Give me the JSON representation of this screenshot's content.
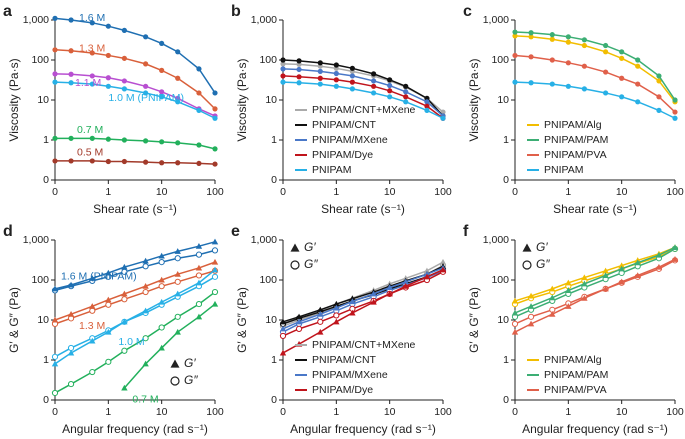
{
  "chart_data": [
    {
      "type": "line",
      "panel_label": "a",
      "xlabel": "Shear rate (s⁻¹)",
      "ylabel": "Viscosity (Pa·s)",
      "log_x": true,
      "log_y": true,
      "xlim": [
        0.1,
        100
      ],
      "ylim": [
        0.1,
        1000
      ],
      "xticks": [
        {
          "value": 0.1,
          "label": "0"
        },
        1,
        10,
        100
      ],
      "yticks": [
        {
          "value": 0.1,
          "label": "0"
        },
        1,
        10,
        100,
        {
          "value": 1000,
          "label": "1,000"
        }
      ],
      "legend": "inline",
      "x": [
        0.1,
        0.2,
        0.5,
        1,
        2,
        5,
        10,
        20,
        50,
        100
      ],
      "series": [
        {
          "name": "1.6 M",
          "color": "#1f6fb2",
          "values": [
            1100,
            1000,
            850,
            700,
            550,
            380,
            260,
            160,
            60,
            15
          ]
        },
        {
          "name": "1.3 M",
          "color": "#d9603b",
          "values": [
            180,
            170,
            150,
            130,
            110,
            80,
            55,
            35,
            15,
            6
          ]
        },
        {
          "name": "1.1 M",
          "color": "#b84fd1",
          "values": [
            45,
            44,
            40,
            36,
            30,
            22,
            16,
            11,
            6,
            4
          ]
        },
        {
          "name": "1.0 M (PNIPAM)",
          "color": "#27b0e6",
          "values": [
            28,
            27,
            25,
            22,
            19,
            15,
            12,
            9,
            5.5,
            3.5
          ]
        },
        {
          "name": "0.7 M",
          "color": "#22b05c",
          "values": [
            1.1,
            1.1,
            1.1,
            1.05,
            1.0,
            0.95,
            0.9,
            0.85,
            0.75,
            0.6
          ]
        },
        {
          "name": "0.5 M",
          "color": "#a23a2a",
          "values": [
            0.3,
            0.3,
            0.3,
            0.29,
            0.29,
            0.28,
            0.27,
            0.27,
            0.26,
            0.25
          ]
        }
      ]
    },
    {
      "type": "line",
      "panel_label": "b",
      "xlabel": "Shear rate (s⁻¹)",
      "ylabel": "Viscosity (Pa·s)",
      "log_x": true,
      "log_y": true,
      "xlim": [
        0.1,
        100
      ],
      "ylim": [
        0.1,
        1000
      ],
      "xticks": [
        {
          "value": 0.1,
          "label": "0"
        },
        1,
        10,
        100
      ],
      "yticks": [
        {
          "value": 0.1,
          "label": "0"
        },
        1,
        10,
        100,
        {
          "value": 1000,
          "label": "1,000"
        }
      ],
      "legend": "lower right",
      "x": [
        0.1,
        0.2,
        0.5,
        1,
        2,
        5,
        10,
        20,
        50,
        100
      ],
      "series": [
        {
          "name": "PNIPAM/CNT+MXene",
          "color": "#aaaaaa",
          "values": [
            80,
            78,
            70,
            62,
            52,
            40,
            30,
            21,
            11,
            5
          ]
        },
        {
          "name": "PNIPAM/CNT",
          "color": "#111111",
          "values": [
            100,
            95,
            85,
            75,
            62,
            45,
            32,
            22,
            11,
            4
          ]
        },
        {
          "name": "PNIPAM/MXene",
          "color": "#4a78c8",
          "values": [
            60,
            58,
            52,
            46,
            40,
            30,
            23,
            16,
            9,
            4
          ]
        },
        {
          "name": "PNIPAM/Dye",
          "color": "#c0141c",
          "values": [
            40,
            38,
            35,
            32,
            28,
            22,
            17,
            12,
            7,
            3.5
          ]
        },
        {
          "name": "PNIPAM",
          "color": "#27b0e6",
          "values": [
            28,
            27,
            25,
            22,
            19,
            15,
            12,
            9,
            5.5,
            3.5
          ]
        }
      ]
    },
    {
      "type": "line",
      "panel_label": "c",
      "xlabel": "Shear rate (s⁻¹)",
      "ylabel": "Viscosity (Pa·s)",
      "log_x": true,
      "log_y": true,
      "xlim": [
        0.1,
        100
      ],
      "ylim": [
        0.1,
        1000
      ],
      "xticks": [
        {
          "value": 0.1,
          "label": "0"
        },
        1,
        10,
        100
      ],
      "yticks": [
        {
          "value": 0.1,
          "label": "0"
        },
        1,
        10,
        100,
        {
          "value": 1000,
          "label": "1,000"
        }
      ],
      "legend": "lower right",
      "x": [
        0.1,
        0.2,
        0.5,
        1,
        2,
        5,
        10,
        20,
        50,
        100
      ],
      "series": [
        {
          "name": "PNIPAM/Alg",
          "color": "#f2bd00",
          "values": [
            400,
            380,
            330,
            280,
            230,
            160,
            110,
            70,
            30,
            9
          ]
        },
        {
          "name": "PNIPAM/PAM",
          "color": "#3cae74",
          "values": [
            500,
            480,
            430,
            380,
            320,
            230,
            160,
            100,
            40,
            10
          ]
        },
        {
          "name": "PNIPAM/PVA",
          "color": "#e0604a",
          "values": [
            130,
            120,
            100,
            85,
            70,
            50,
            35,
            25,
            12,
            5
          ]
        },
        {
          "name": "PNIPAM",
          "color": "#27b0e6",
          "values": [
            28,
            27,
            25,
            22,
            19,
            15,
            12,
            9,
            5.5,
            3.5
          ]
        }
      ]
    },
    {
      "type": "moduli",
      "panel_label": "d",
      "xlabel": "Angular frequency (rad s⁻¹)",
      "ylabel": "G′ & G″ (Pa)",
      "log_x": true,
      "log_y": true,
      "xlim": [
        0.1,
        100
      ],
      "ylim": [
        0.1,
        1000
      ],
      "xticks": [
        {
          "value": 0.1,
          "label": "0"
        },
        1,
        10,
        100
      ],
      "yticks": [
        {
          "value": 0.1,
          "label": "0"
        },
        1,
        10,
        100,
        {
          "value": 1000,
          "label": "1,000"
        }
      ],
      "legend": "inline",
      "marker_legend": [
        "G′",
        "G″"
      ],
      "marker_legend_corner": "lower right",
      "x": [
        0.1,
        0.2,
        0.5,
        1,
        2,
        5,
        10,
        20,
        50,
        100
      ],
      "series": [
        {
          "name": "1.6 M (PNIPAM)",
          "color": "#1f6fb2",
          "g_prime": [
            60,
            75,
            110,
            150,
            210,
            300,
            400,
            520,
            700,
            900
          ],
          "g_double_prime": [
            55,
            70,
            95,
            120,
            160,
            220,
            280,
            350,
            430,
            550
          ]
        },
        {
          "name": "1.3 M",
          "color": "#d9603b",
          "g_prime": [
            10,
            14,
            22,
            32,
            45,
            70,
            100,
            140,
            200,
            280
          ],
          "g_double_prime": [
            8,
            11,
            17,
            24,
            33,
            50,
            70,
            90,
            130,
            170
          ]
        },
        {
          "name": "1.0 M",
          "color": "#27b0e6",
          "g_prime": [
            0.8,
            1.5,
            3,
            5,
            9,
            17,
            28,
            45,
            85,
            180
          ],
          "g_double_prime": [
            1.2,
            2,
            3.5,
            5.5,
            9,
            15,
            24,
            38,
            70,
            120
          ]
        },
        {
          "name": "0.7 M",
          "color": "#22b05c",
          "g_prime": [
            null,
            null,
            null,
            null,
            0.2,
            0.8,
            2,
            5,
            12,
            25
          ],
          "g_double_prime": [
            0.15,
            0.25,
            0.5,
            0.9,
            1.7,
            3.5,
            6.5,
            12,
            25,
            50
          ]
        }
      ]
    },
    {
      "type": "moduli",
      "panel_label": "e",
      "xlabel": "Angular frequency (rad s⁻¹)",
      "ylabel": "G′ & G″ (Pa)",
      "log_x": true,
      "log_y": true,
      "xlim": [
        0.1,
        100
      ],
      "ylim": [
        0.1,
        1000
      ],
      "xticks": [
        {
          "value": 0.1,
          "label": "0"
        },
        1,
        10,
        100
      ],
      "yticks": [
        {
          "value": 0.1,
          "label": "0"
        },
        1,
        10,
        100,
        {
          "value": 1000,
          "label": "1,000"
        }
      ],
      "legend": "lower right",
      "marker_legend": [
        "G′",
        "G″"
      ],
      "marker_legend_corner": "upper left",
      "x": [
        0.1,
        0.2,
        0.5,
        1,
        2,
        5,
        10,
        20,
        50,
        100
      ],
      "series": [
        {
          "name": "PNIPAM/CNT+MXene",
          "color": "#aaaaaa",
          "g_prime": [
            8,
            11,
            17,
            25,
            35,
            55,
            80,
            110,
            170,
            280
          ],
          "g_double_prime": [
            7,
            10,
            15,
            21,
            30,
            45,
            65,
            90,
            140,
            230
          ]
        },
        {
          "name": "PNIPAM/CNT",
          "color": "#111111",
          "g_prime": [
            9,
            12,
            18,
            25,
            34,
            50,
            70,
            95,
            140,
            220
          ],
          "g_double_prime": [
            8,
            11,
            16,
            22,
            30,
            43,
            60,
            80,
            120,
            180
          ]
        },
        {
          "name": "PNIPAM/MXene",
          "color": "#4a78c8",
          "g_prime": [
            6,
            9,
            14,
            20,
            29,
            45,
            65,
            90,
            140,
            200
          ],
          "g_double_prime": [
            5,
            8,
            12,
            17,
            25,
            38,
            55,
            75,
            115,
            170
          ]
        },
        {
          "name": "PNIPAM/Dye",
          "color": "#c0141c",
          "g_prime": [
            1.5,
            2.5,
            5,
            9,
            15,
            28,
            45,
            70,
            120,
            180
          ],
          "g_double_prime": [
            4,
            6,
            9,
            13,
            19,
            30,
            45,
            65,
            100,
            160
          ]
        }
      ]
    },
    {
      "type": "moduli",
      "panel_label": "f",
      "xlabel": "Angular frequency (rad s⁻¹)",
      "ylabel": "G′ & G″ (Pa)",
      "log_x": true,
      "log_y": true,
      "xlim": [
        0.1,
        100
      ],
      "ylim": [
        0.1,
        1000
      ],
      "xticks": [
        {
          "value": 0.1,
          "label": "0"
        },
        1,
        10,
        100
      ],
      "yticks": [
        {
          "value": 0.1,
          "label": "0"
        },
        1,
        10,
        100,
        {
          "value": 1000,
          "label": "1,000"
        }
      ],
      "legend": "lower right",
      "marker_legend": [
        "G′",
        "G″"
      ],
      "marker_legend_corner": "upper left",
      "x": [
        0.1,
        0.2,
        0.5,
        1,
        2,
        5,
        10,
        20,
        50,
        100
      ],
      "series": [
        {
          "name": "PNIPAM/Alg",
          "color": "#f2bd00",
          "g_prime": [
            30,
            40,
            60,
            85,
            115,
            170,
            230,
            310,
            450,
            650
          ],
          "g_double_prime": [
            25,
            35,
            50,
            70,
            95,
            140,
            190,
            260,
            380,
            600
          ]
        },
        {
          "name": "PNIPAM/PAM",
          "color": "#3cae74",
          "g_prime": [
            15,
            22,
            36,
            55,
            80,
            130,
            190,
            270,
            420,
            650
          ],
          "g_double_prime": [
            12,
            18,
            30,
            45,
            65,
            105,
            150,
            220,
            350,
            600
          ]
        },
        {
          "name": "PNIPAM/PVA",
          "color": "#e0604a",
          "g_prime": [
            5,
            8,
            14,
            22,
            35,
            60,
            90,
            130,
            210,
            330
          ],
          "g_double_prime": [
            8,
            12,
            18,
            26,
            38,
            60,
            85,
            120,
            190,
            310
          ]
        }
      ]
    }
  ]
}
